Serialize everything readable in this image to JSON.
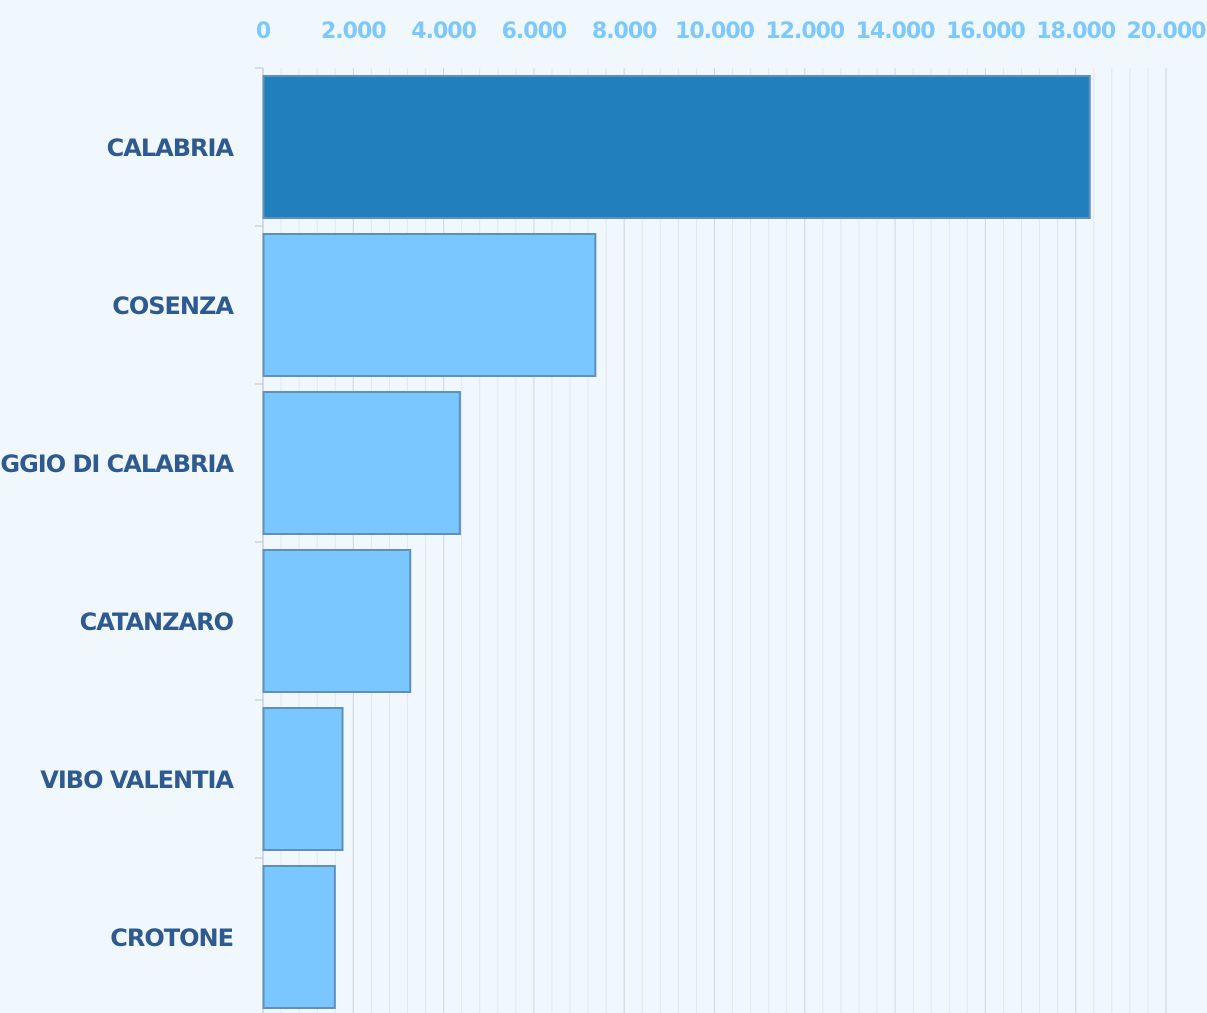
{
  "chart_data": {
    "type": "bar",
    "orientation": "horizontal",
    "categories": [
      "CALABRIA",
      "COSENZA",
      "REGGIO DI CALABRIA",
      "CATANZARO",
      "VIBO VALENTIA",
      "CROTONE"
    ],
    "values": [
      18300,
      7350,
      4350,
      3250,
      1750,
      1580
    ],
    "highlight_index": 0,
    "xlim": [
      0,
      20000
    ],
    "ticks": [
      0,
      2000,
      4000,
      6000,
      8000,
      10000,
      12000,
      14000,
      16000,
      18000,
      20000
    ],
    "tick_labels": [
      "0",
      "2.000",
      "4.000",
      "6.000",
      "8.000",
      "10.000",
      "12.000",
      "14.000",
      "16.000",
      "18.000",
      "20.000"
    ],
    "tick_position": "top",
    "grid": true,
    "colors": {
      "highlight": "#217fbd",
      "bar": "#7ac6fe",
      "bar_border": "#5e8fbe",
      "tick_text": "#7dc8ff",
      "category_text": "#2e5a8f",
      "background": "#f1f8fd"
    }
  }
}
